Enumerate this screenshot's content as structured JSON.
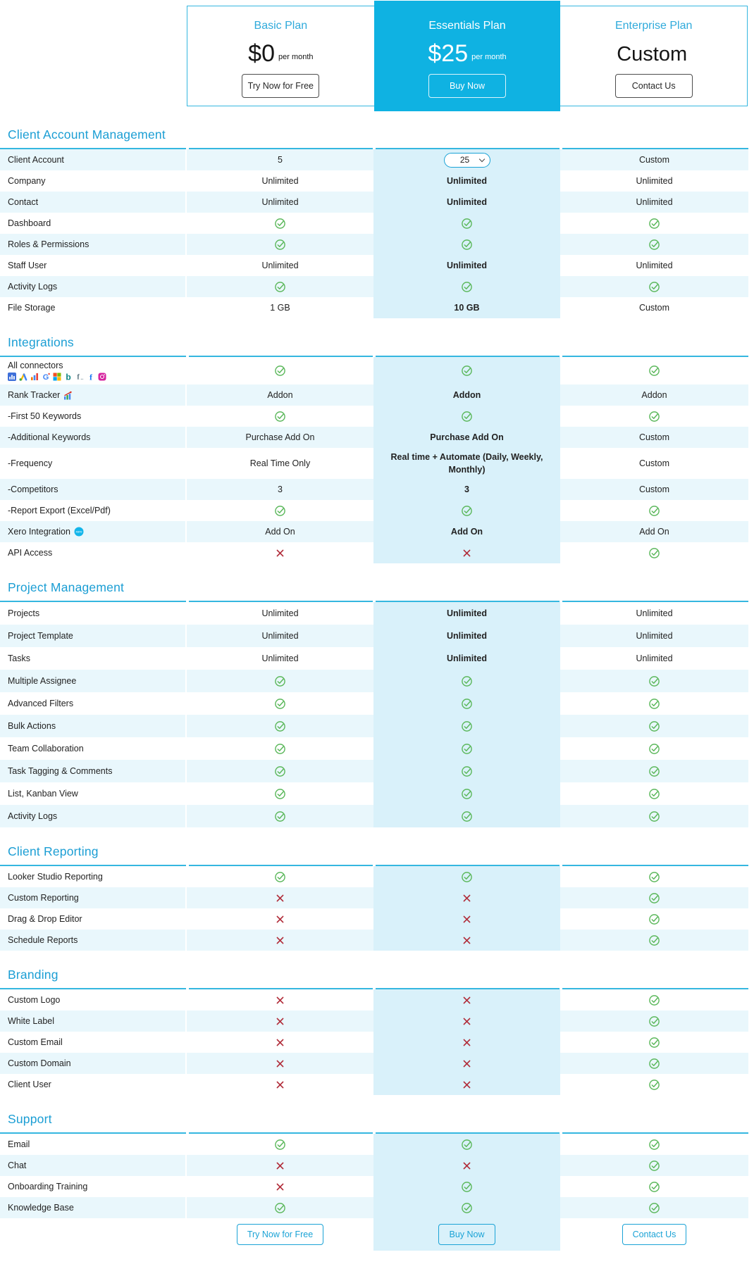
{
  "theme": {
    "accent": "#0fb2e2",
    "heading": "#1b9ed4",
    "plan_title": "#2faadb",
    "table_border": "#35b7e0",
    "stripe": "#e9f7fc",
    "essentials_tint": "#d9f1fa",
    "check_green": "#5cb85c",
    "cross_red": "#b02a37",
    "cta_cyan": "#1ba3d6"
  },
  "plans": [
    {
      "name": "Basic Plan",
      "price": "$0",
      "price_suffix": "per month",
      "cta": "Try Now for Free",
      "highlighted": false
    },
    {
      "name": "Essentials Plan",
      "price": "$25",
      "price_suffix": "per month",
      "cta": "Buy Now",
      "highlighted": true
    },
    {
      "name": "Enterprise Plan",
      "price": "Custom",
      "price_suffix": "",
      "cta": "Contact Us",
      "highlighted": false
    }
  ],
  "sections": [
    {
      "title": "Client Account Management",
      "striped_first": true,
      "rows": [
        {
          "label": "Client Account",
          "values": [
            "5",
            {
              "type": "select",
              "value": "25",
              "options": [
                "25"
              ]
            },
            "Custom"
          ]
        },
        {
          "label": "Company",
          "values": [
            "Unlimited",
            "Unlimited",
            "Unlimited"
          ]
        },
        {
          "label": "Contact",
          "values": [
            "Unlimited",
            "Unlimited",
            "Unlimited"
          ]
        },
        {
          "label": "Dashboard",
          "values": [
            "CHECK",
            "CHECK",
            "CHECK"
          ]
        },
        {
          "label": "Roles & Permissions",
          "values": [
            "CHECK",
            "CHECK",
            "CHECK"
          ]
        },
        {
          "label": "Staff User",
          "values": [
            "Unlimited",
            "Unlimited",
            "Unlimited"
          ]
        },
        {
          "label": "Activity Logs",
          "values": [
            "CHECK",
            "CHECK",
            "CHECK"
          ]
        },
        {
          "label": "File Storage",
          "values": [
            "1 GB",
            "10 GB",
            "Custom"
          ]
        }
      ]
    },
    {
      "title": "Integrations",
      "striped_first": false,
      "rows": [
        {
          "label": "All connectors",
          "icons": [
            "google-analytics",
            "google-ads",
            "analytics-bars",
            "search-console",
            "microsoft",
            "bing",
            "facebook-alt",
            "facebook",
            "instagram"
          ],
          "values": [
            "CHECK",
            "CHECK",
            "CHECK"
          ]
        },
        {
          "label": "Rank Tracker",
          "label_icon": "rank-tracker",
          "values": [
            "Addon",
            "Addon",
            "Addon"
          ]
        },
        {
          "label": "-First 50 Keywords",
          "values": [
            "CHECK",
            "CHECK",
            "CHECK"
          ]
        },
        {
          "label": "-Additional Keywords",
          "values": [
            "Purchase Add On",
            "Purchase Add On",
            "Custom"
          ]
        },
        {
          "label": "-Frequency",
          "values": [
            "Real Time Only",
            "Real time + Automate (Daily, Weekly, Monthly)",
            "Custom"
          ]
        },
        {
          "label": "-Competitors",
          "values": [
            "3",
            "3",
            "Custom"
          ]
        },
        {
          "label": "-Report Export (Excel/Pdf)",
          "values": [
            "CHECK",
            "CHECK",
            "CHECK"
          ]
        },
        {
          "label": "Xero Integration",
          "label_icon": "xero",
          "values": [
            "Add On",
            "Add On",
            "Add On"
          ]
        },
        {
          "label": "API Access",
          "values": [
            "CROSS",
            "CROSS",
            "CHECK"
          ]
        }
      ]
    },
    {
      "title": "Project Management",
      "striped_first": false,
      "rows": [
        {
          "label": "Projects",
          "values": [
            "Unlimited",
            "Unlimited",
            "Unlimited"
          ]
        },
        {
          "label": "Project Template",
          "values": [
            "Unlimited",
            "Unlimited",
            "Unlimited"
          ]
        },
        {
          "label": "Tasks",
          "values": [
            "Unlimited",
            "Unlimited",
            "Unlimited"
          ]
        },
        {
          "label": "Multiple Assignee",
          "values": [
            "CHECK",
            "CHECK",
            "CHECK"
          ]
        },
        {
          "label": "Advanced Filters",
          "values": [
            "CHECK",
            "CHECK",
            "CHECK"
          ]
        },
        {
          "label": "Bulk Actions",
          "values": [
            "CHECK",
            "CHECK",
            "CHECK"
          ]
        },
        {
          "label": "Team Collaboration",
          "values": [
            "CHECK",
            "CHECK",
            "CHECK"
          ]
        },
        {
          "label": "Task Tagging & Comments",
          "values": [
            "CHECK",
            "CHECK",
            "CHECK"
          ]
        },
        {
          "label": "List, Kanban View",
          "values": [
            "CHECK",
            "CHECK",
            "CHECK"
          ]
        },
        {
          "label": "Activity Logs",
          "values": [
            "CHECK",
            "CHECK",
            "CHECK"
          ]
        }
      ]
    },
    {
      "title": "Client Reporting",
      "striped_first": false,
      "rows": [
        {
          "label": "Looker Studio Reporting",
          "values": [
            "CHECK",
            "CHECK",
            "CHECK"
          ]
        },
        {
          "label": "Custom Reporting",
          "values": [
            "CROSS",
            "CROSS",
            "CHECK"
          ]
        },
        {
          "label": "Drag & Drop Editor",
          "values": [
            "CROSS",
            "CROSS",
            "CHECK"
          ]
        },
        {
          "label": "Schedule Reports",
          "values": [
            "CROSS",
            "CROSS",
            "CHECK"
          ]
        }
      ]
    },
    {
      "title": "Branding",
      "striped_first": false,
      "rows": [
        {
          "label": "Custom Logo",
          "values": [
            "CROSS",
            "CROSS",
            "CHECK"
          ]
        },
        {
          "label": "White Label",
          "values": [
            "CROSS",
            "CROSS",
            "CHECK"
          ]
        },
        {
          "label": "Custom Email",
          "values": [
            "CROSS",
            "CROSS",
            "CHECK"
          ]
        },
        {
          "label": "Custom Domain",
          "values": [
            "CROSS",
            "CROSS",
            "CHECK"
          ]
        },
        {
          "label": "Client User",
          "values": [
            "CROSS",
            "CROSS",
            "CHECK"
          ]
        }
      ]
    },
    {
      "title": "Support",
      "striped_first": false,
      "rows": [
        {
          "label": "Email",
          "values": [
            "CHECK",
            "CHECK",
            "CHECK"
          ]
        },
        {
          "label": "Chat",
          "values": [
            "CROSS",
            "CROSS",
            "CHECK"
          ]
        },
        {
          "label": "Onboarding Training",
          "values": [
            "CROSS",
            "CHECK",
            "CHECK"
          ]
        },
        {
          "label": "Knowledge Base",
          "values": [
            "CHECK",
            "CHECK",
            "CHECK"
          ]
        }
      ]
    }
  ],
  "footer": {
    "buttons": [
      "Try Now for Free",
      "Buy Now",
      "Contact Us"
    ]
  }
}
